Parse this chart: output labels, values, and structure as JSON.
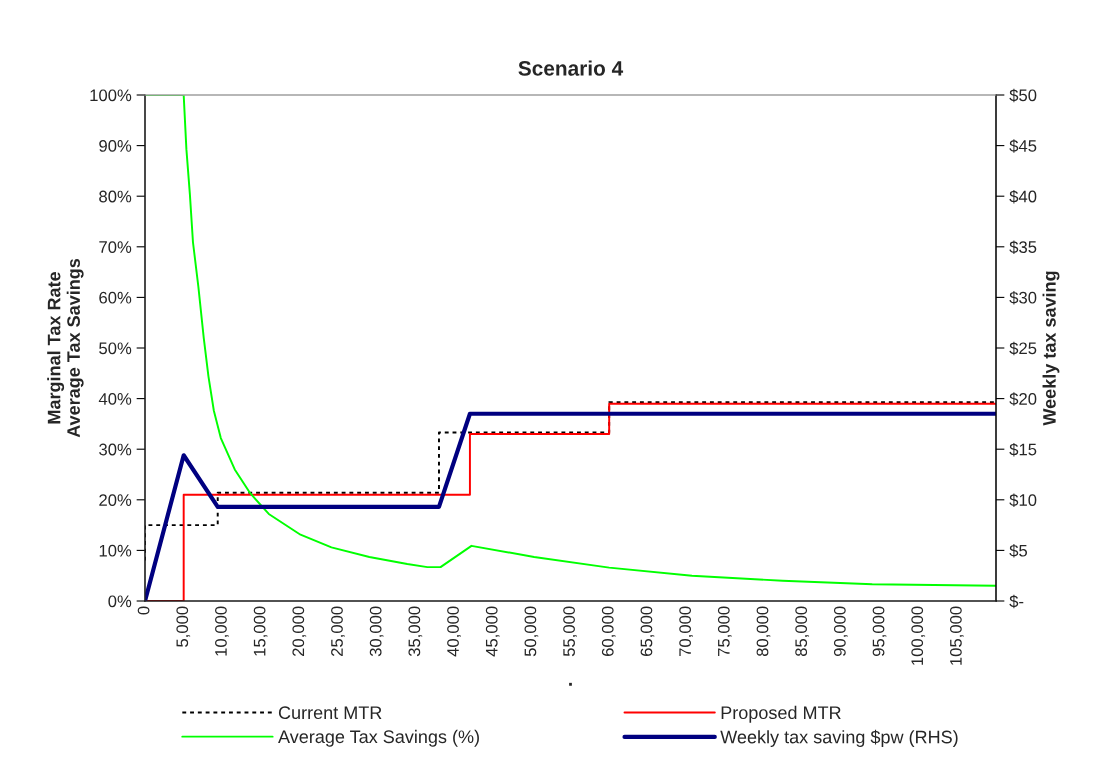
{
  "chart_data": {
    "type": "line",
    "title": "Scenario 4",
    "xlabel": ".",
    "ylabel": "Marginal Tax Rate\nAverage Tax Savings",
    "y2label": "Weekly tax saving",
    "xlim": [
      0,
      110000
    ],
    "xticks": [
      {
        "value": 0,
        "label": "0"
      },
      {
        "value": 5000,
        "label": "5,000"
      },
      {
        "value": 10000,
        "label": "10,000"
      },
      {
        "value": 15000,
        "label": "15,000"
      },
      {
        "value": 20000,
        "label": "20,000"
      },
      {
        "value": 25000,
        "label": "25,000"
      },
      {
        "value": 30000,
        "label": "30,000"
      },
      {
        "value": 35000,
        "label": "35,000"
      },
      {
        "value": 40000,
        "label": "40,000"
      },
      {
        "value": 45000,
        "label": "45,000"
      },
      {
        "value": 50000,
        "label": "50,000"
      },
      {
        "value": 55000,
        "label": "55,000"
      },
      {
        "value": 60000,
        "label": "60,000"
      },
      {
        "value": 65000,
        "label": "65,000"
      },
      {
        "value": 70000,
        "label": "70,000"
      },
      {
        "value": 75000,
        "label": "75,000"
      },
      {
        "value": 80000,
        "label": "80,000"
      },
      {
        "value": 85000,
        "label": "85,000"
      },
      {
        "value": 90000,
        "label": "90,000"
      },
      {
        "value": 95000,
        "label": "95,000"
      },
      {
        "value": 100000,
        "label": "100,000"
      },
      {
        "value": 105000,
        "label": "105,000"
      }
    ],
    "ylim": [
      0,
      100
    ],
    "yticks": [
      {
        "value": 0,
        "label": "0%"
      },
      {
        "value": 10,
        "label": "10%"
      },
      {
        "value": 20,
        "label": "20%"
      },
      {
        "value": 30,
        "label": "30%"
      },
      {
        "value": 40,
        "label": "40%"
      },
      {
        "value": 50,
        "label": "50%"
      },
      {
        "value": 60,
        "label": "60%"
      },
      {
        "value": 70,
        "label": "70%"
      },
      {
        "value": 80,
        "label": "80%"
      },
      {
        "value": 90,
        "label": "90%"
      },
      {
        "value": 100,
        "label": "100%"
      }
    ],
    "y2lim": [
      0,
      50
    ],
    "y2ticks": [
      {
        "value": 0,
        "label": "$-"
      },
      {
        "value": 5,
        "label": "$5"
      },
      {
        "value": 10,
        "label": "$10"
      },
      {
        "value": 15,
        "label": "$15"
      },
      {
        "value": 20,
        "label": "$20"
      },
      {
        "value": 25,
        "label": "$25"
      },
      {
        "value": 30,
        "label": "$30"
      },
      {
        "value": 35,
        "label": "$35"
      },
      {
        "value": 40,
        "label": "$40"
      },
      {
        "value": 45,
        "label": "$45"
      },
      {
        "value": 50,
        "label": "$50"
      }
    ],
    "grid": false,
    "legend": "bottom",
    "series": [
      {
        "name": "Current MTR",
        "color": "#000000",
        "line_style": "dotted",
        "x": [
          0,
          0,
          9400,
          9400,
          38000,
          38000,
          60000,
          60000,
          110000
        ],
        "values": [
          8,
          15,
          15,
          21.4,
          21.4,
          33.3,
          33.3,
          39.3,
          39.3
        ]
      },
      {
        "name": "Proposed MTR",
        "color": "#ff0000",
        "line_style": "solid",
        "x": [
          0,
          5000,
          5000,
          42000,
          42000,
          60000,
          60000,
          110000
        ],
        "values": [
          0,
          0,
          21,
          21,
          33,
          33,
          39,
          39
        ]
      },
      {
        "name": "Average Tax Savings (%)",
        "color": "#00ff00",
        "line_style": "solid",
        "x": [
          0,
          5000,
          5350,
          5800,
          6200,
          6900,
          7600,
          8200,
          8900,
          9800,
          11600,
          13600,
          16000,
          20100,
          24100,
          29000,
          33900,
          36500,
          38200,
          42200,
          50300,
          60000,
          70700,
          82400,
          94000,
          110000
        ],
        "values": [
          100,
          100,
          89.3,
          80.4,
          70.9,
          62.1,
          51.9,
          44.4,
          37.6,
          32.2,
          26.0,
          21.3,
          17.2,
          13.1,
          10.6,
          8.7,
          7.3,
          6.7,
          6.7,
          10.9,
          8.7,
          6.6,
          5.0,
          4.0,
          3.3,
          3.0
        ]
      },
      {
        "name": "Weekly tax saving $pw (RHS)",
        "color": "#000080",
        "line_style": "solid",
        "axis": "y2",
        "x": [
          0,
          5000,
          9400,
          38000,
          42000,
          110000
        ],
        "values": [
          0,
          14.4,
          9.3,
          9.3,
          18.5,
          18.5
        ]
      }
    ]
  }
}
